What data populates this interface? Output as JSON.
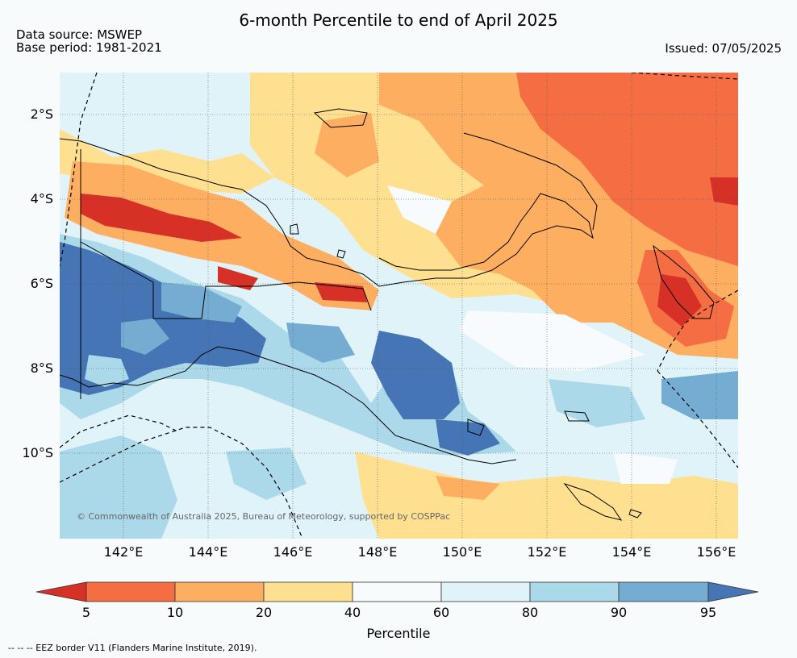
{
  "header": {
    "title": "6-month Percentile to end of April 2025",
    "data_source": "Data source: MSWEP",
    "base_period": "Base period: 1981-2021",
    "issued": "Issued: 07/05/2025"
  },
  "map": {
    "y_ticks": [
      "2°S",
      "4°S",
      "6°S",
      "8°S",
      "10°S"
    ],
    "x_ticks": [
      "142°E",
      "144°E",
      "146°E",
      "148°E",
      "150°E",
      "152°E",
      "154°E",
      "156°E"
    ],
    "copyright": "© Commonwealth of Australia 2025, Bureau of Meteorology, supported by COSPPac",
    "eez_note": "-- -- -- EEZ border V11 (Flanders Marine Institute, 2019)."
  },
  "colorbar": {
    "labels": [
      "5",
      "10",
      "20",
      "40",
      "60",
      "80",
      "90",
      "95"
    ],
    "colors": [
      "#d73027",
      "#f46d43",
      "#fdae61",
      "#fee090",
      "#f7fbfd",
      "#e0f3f8",
      "#abd9e9",
      "#74add1",
      "#4575b4"
    ],
    "title": "Percentile"
  }
}
